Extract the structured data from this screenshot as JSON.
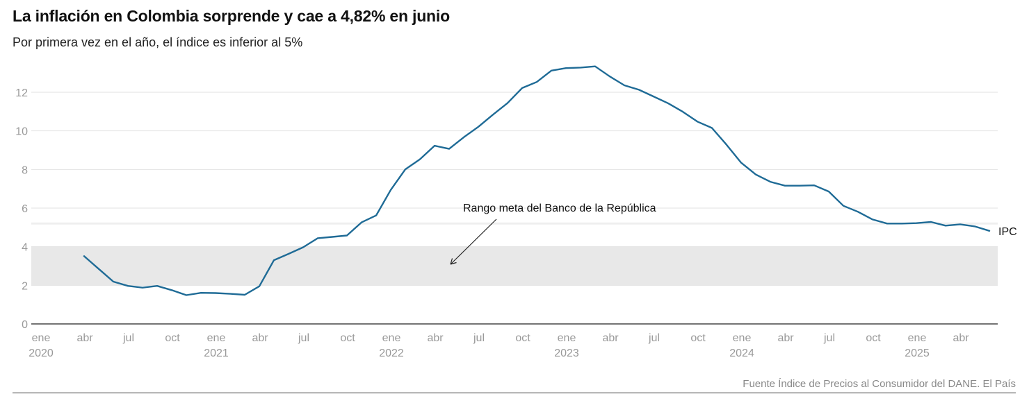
{
  "header": {
    "title": "La inflación en Colombia sorprende y cae a 4,82% en junio",
    "subtitle": "Por primera vez en el año, el índice es inferior al 5%"
  },
  "footer": {
    "source": "Fuente Índice de Precios al Consumidor del DANE. El País"
  },
  "colors": {
    "line": "#1f6b96",
    "band": "#e8e8e8",
    "grid": "#e2e2e2",
    "tick_label": "#999999",
    "axis": "#222222"
  },
  "chart_data": {
    "type": "line",
    "title": "La inflación en Colombia sorprende y cae a 4,82% en junio",
    "subtitle": "Por primera vez en el año, el índice es inferior al 5%",
    "xlabel": "",
    "ylabel": "",
    "xlim": [
      "2020-01",
      "2025-07"
    ],
    "ylim": [
      0,
      13.5
    ],
    "y_ticks": [
      0,
      2,
      4,
      6,
      8,
      10,
      12
    ],
    "grid": "horizontal",
    "x_ticks": [
      {
        "date": "2020-01",
        "label": "ene",
        "year": "2020"
      },
      {
        "date": "2020-04",
        "label": "abr",
        "year": ""
      },
      {
        "date": "2020-07",
        "label": "jul",
        "year": ""
      },
      {
        "date": "2020-10",
        "label": "oct",
        "year": ""
      },
      {
        "date": "2021-01",
        "label": "ene",
        "year": "2021"
      },
      {
        "date": "2021-04",
        "label": "abr",
        "year": ""
      },
      {
        "date": "2021-07",
        "label": "jul",
        "year": ""
      },
      {
        "date": "2021-10",
        "label": "oct",
        "year": ""
      },
      {
        "date": "2022-01",
        "label": "ene",
        "year": "2022"
      },
      {
        "date": "2022-04",
        "label": "abr",
        "year": ""
      },
      {
        "date": "2022-07",
        "label": "jul",
        "year": ""
      },
      {
        "date": "2022-10",
        "label": "oct",
        "year": ""
      },
      {
        "date": "2023-01",
        "label": "ene",
        "year": "2023"
      },
      {
        "date": "2023-04",
        "label": "abr",
        "year": ""
      },
      {
        "date": "2023-07",
        "label": "jul",
        "year": ""
      },
      {
        "date": "2023-10",
        "label": "oct",
        "year": ""
      },
      {
        "date": "2024-01",
        "label": "ene",
        "year": "2024"
      },
      {
        "date": "2024-04",
        "label": "abr",
        "year": ""
      },
      {
        "date": "2024-07",
        "label": "jul",
        "year": ""
      },
      {
        "date": "2024-10",
        "label": "oct",
        "year": ""
      },
      {
        "date": "2025-01",
        "label": "ene",
        "year": "2025"
      },
      {
        "date": "2025-04",
        "label": "abr",
        "year": ""
      }
    ],
    "band": {
      "low": 2,
      "high": 4,
      "label": "Rango meta del Banco de la República"
    },
    "series": [
      {
        "name": "IPC",
        "points": [
          [
            "2020-04",
            3.51
          ],
          [
            "2020-05",
            2.85
          ],
          [
            "2020-06",
            2.19
          ],
          [
            "2020-07",
            1.97
          ],
          [
            "2020-08",
            1.88
          ],
          [
            "2020-09",
            1.97
          ],
          [
            "2020-10",
            1.75
          ],
          [
            "2020-11",
            1.49
          ],
          [
            "2020-12",
            1.61
          ],
          [
            "2021-01",
            1.6
          ],
          [
            "2021-02",
            1.56
          ],
          [
            "2021-03",
            1.51
          ],
          [
            "2021-04",
            1.95
          ],
          [
            "2021-05",
            3.3
          ],
          [
            "2021-06",
            3.63
          ],
          [
            "2021-07",
            3.97
          ],
          [
            "2021-08",
            4.44
          ],
          [
            "2021-09",
            4.51
          ],
          [
            "2021-10",
            4.58
          ],
          [
            "2021-11",
            5.26
          ],
          [
            "2021-12",
            5.62
          ],
          [
            "2022-01",
            6.94
          ],
          [
            "2022-02",
            8.01
          ],
          [
            "2022-03",
            8.53
          ],
          [
            "2022-04",
            9.23
          ],
          [
            "2022-05",
            9.07
          ],
          [
            "2022-06",
            9.67
          ],
          [
            "2022-07",
            10.21
          ],
          [
            "2022-08",
            10.84
          ],
          [
            "2022-09",
            11.44
          ],
          [
            "2022-10",
            12.22
          ],
          [
            "2022-11",
            12.53
          ],
          [
            "2022-12",
            13.12
          ],
          [
            "2023-01",
            13.25
          ],
          [
            "2023-02",
            13.28
          ],
          [
            "2023-03",
            13.34
          ],
          [
            "2023-04",
            12.82
          ],
          [
            "2023-05",
            12.36
          ],
          [
            "2023-06",
            12.13
          ],
          [
            "2023-07",
            11.78
          ],
          [
            "2023-08",
            11.43
          ],
          [
            "2023-09",
            10.99
          ],
          [
            "2023-10",
            10.48
          ],
          [
            "2023-11",
            10.15
          ],
          [
            "2023-12",
            9.28
          ],
          [
            "2024-01",
            8.35
          ],
          [
            "2024-02",
            7.74
          ],
          [
            "2024-03",
            7.36
          ],
          [
            "2024-04",
            7.16
          ],
          [
            "2024-05",
            7.16
          ],
          [
            "2024-06",
            7.18
          ],
          [
            "2024-07",
            6.86
          ],
          [
            "2024-08",
            6.12
          ],
          [
            "2024-09",
            5.81
          ],
          [
            "2024-10",
            5.41
          ],
          [
            "2024-11",
            5.2
          ],
          [
            "2024-12",
            5.2
          ],
          [
            "2025-01",
            5.22
          ],
          [
            "2025-02",
            5.28
          ],
          [
            "2025-03",
            5.09
          ],
          [
            "2025-04",
            5.16
          ],
          [
            "2025-05",
            5.05
          ],
          [
            "2025-06",
            4.82
          ]
        ]
      }
    ]
  }
}
